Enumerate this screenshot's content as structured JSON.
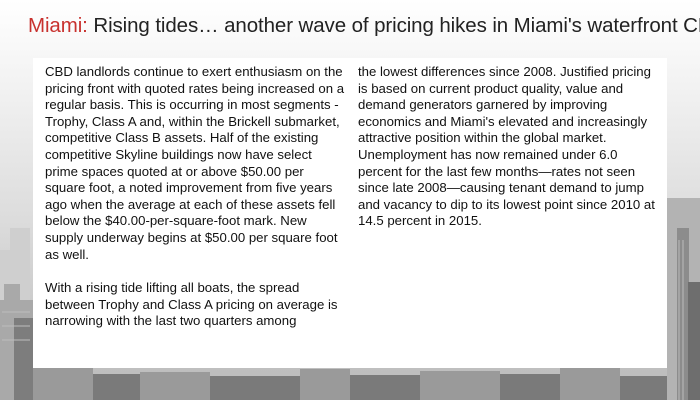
{
  "title": {
    "city": "Miami:",
    "rest": " Rising tides… another wave of pricing hikes in Miami's waterfront CBD"
  },
  "body": {
    "left_paragraph_1": "CBD landlords continue to exert enthusiasm on the pricing front with quoted rates being increased on a regular basis. This is occurring in most segments - Trophy, Class A and, within the Brickell submarket, competitive Class B assets. Half of the existing competitive Skyline buildings now have select prime spaces quoted at or above $50.00 per square foot, a noted improvement from five years ago when the average at each of these assets fell below the $40.00-per-square-foot mark. New supply underway begins at $50.00 per square foot as well.",
    "left_paragraph_2": "With a rising tide lifting all boats, the spread between Trophy and Class A pricing on average is narrowing with the last two quarters among",
    "right_paragraph": "the lowest differences since 2008. Justified pricing is based on current product quality, value and demand generators garnered by improving economics and Miami's elevated and increasingly attractive position within the global market. Unemployment has now remained under 6.0 percent for the last few months—rates not seen since late 2008—causing tenant demand to jump and vacancy to dip to its lowest point since 2010 at 14.5 percent in 2015."
  }
}
